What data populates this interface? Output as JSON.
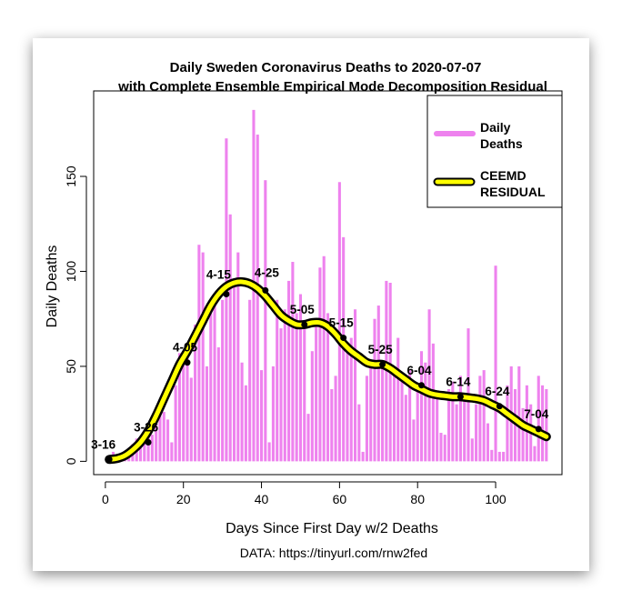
{
  "chart_data": {
    "type": "bar",
    "title": "Daily Sweden Coronavirus Deaths to 2020-07-07",
    "subtitle": "with Complete Ensemble Empirical Mode Decomposition Residual",
    "xlabel": "Days Since First Day w/2 Deaths",
    "ylabel": "Daily Deaths",
    "source": "DATA: https://tinyurl.com/rnw2fed",
    "xlim": [
      -3,
      117
    ],
    "ylim": [
      -7,
      195
    ],
    "xticks": [
      0,
      20,
      40,
      60,
      80,
      100
    ],
    "yticks": [
      0,
      50,
      100,
      150
    ],
    "grid": false,
    "legend": {
      "position": "top-right",
      "entries": [
        {
          "label_lines": [
            "Daily",
            "Deaths"
          ],
          "color": "#ee82ee",
          "style": "bar"
        },
        {
          "label_lines": [
            "CEEMD",
            "RESIDUAL"
          ],
          "color": "#ffff00",
          "edge": "#000000",
          "style": "line"
        }
      ]
    },
    "colors": {
      "bars": "#ee82ee",
      "residual_fill": "#ffff00",
      "residual_edge": "#000000"
    },
    "series": [
      {
        "name": "Daily Deaths",
        "type": "bar",
        "x": [
          1,
          2,
          3,
          4,
          5,
          6,
          7,
          8,
          9,
          10,
          11,
          12,
          13,
          14,
          15,
          16,
          17,
          18,
          19,
          20,
          21,
          22,
          23,
          24,
          25,
          26,
          27,
          28,
          29,
          30,
          31,
          32,
          33,
          34,
          35,
          36,
          37,
          38,
          39,
          40,
          41,
          42,
          43,
          44,
          45,
          46,
          47,
          48,
          49,
          50,
          51,
          52,
          53,
          54,
          55,
          56,
          57,
          58,
          59,
          60,
          61,
          62,
          63,
          64,
          65,
          66,
          67,
          68,
          69,
          70,
          71,
          72,
          73,
          74,
          75,
          76,
          77,
          78,
          79,
          80,
          81,
          82,
          83,
          84,
          85,
          86,
          87,
          88,
          89,
          90,
          91,
          92,
          93,
          94,
          95,
          96,
          97,
          98,
          99,
          100,
          101,
          102,
          103,
          104,
          105,
          106,
          107,
          108,
          109,
          110,
          111,
          112,
          113
        ],
        "values": [
          2,
          5,
          1,
          4,
          5,
          7,
          9,
          12,
          10,
          15,
          18,
          14,
          20,
          24,
          26,
          22,
          10,
          40,
          57,
          55,
          60,
          44,
          72,
          114,
          110,
          50,
          78,
          85,
          60,
          85,
          170,
          130,
          96,
          110,
          52,
          40,
          85,
          185,
          172,
          48,
          148,
          10,
          50,
          85,
          70,
          80,
          95,
          105,
          78,
          88,
          72,
          25,
          58,
          75,
          102,
          108,
          78,
          38,
          45,
          147,
          118,
          62,
          65,
          80,
          30,
          5,
          45,
          52,
          75,
          82,
          50,
          95,
          94,
          48,
          65,
          44,
          35,
          48,
          22,
          40,
          58,
          52,
          80,
          62,
          36,
          15,
          14,
          38,
          42,
          30,
          45,
          35,
          70,
          12,
          30,
          45,
          48,
          20,
          6,
          103,
          5,
          5,
          40,
          50,
          38,
          50,
          28,
          40,
          30,
          8,
          45,
          40,
          38
        ]
      },
      {
        "name": "CEEMD Residual",
        "type": "line",
        "x": [
          1,
          3,
          5,
          7,
          9,
          11,
          13,
          15,
          17,
          19,
          21,
          23,
          25,
          27,
          29,
          31,
          33,
          35,
          37,
          39,
          41,
          43,
          45,
          47,
          49,
          51,
          53,
          55,
          57,
          59,
          61,
          63,
          65,
          67,
          69,
          71,
          73,
          75,
          77,
          79,
          81,
          83,
          85,
          87,
          89,
          91,
          93,
          95,
          97,
          99,
          101,
          103,
          105,
          107,
          109,
          111,
          113
        ],
        "values": [
          1,
          1.5,
          3,
          6,
          10,
          16,
          24,
          33,
          42,
          51,
          58,
          66,
          74,
          82,
          88,
          92,
          94,
          94.5,
          93.5,
          91,
          87,
          82,
          77,
          74,
          72,
          72,
          73,
          73,
          71,
          67,
          62,
          58,
          55,
          52,
          51,
          51,
          49,
          46,
          43,
          40,
          38,
          36,
          35,
          34.5,
          34,
          34,
          33.5,
          33,
          32,
          30,
          28,
          25,
          22,
          19,
          17,
          15,
          13
        ]
      }
    ],
    "annotations": [
      {
        "label": "3-16",
        "x": 1,
        "y": 1
      },
      {
        "label": "3-26",
        "x": 11,
        "y": 10
      },
      {
        "label": "4-05",
        "x": 21,
        "y": 52
      },
      {
        "label": "4-15",
        "x": 31,
        "y": 88
      },
      {
        "label": "4-25",
        "x": 41,
        "y": 90
      },
      {
        "label": "5-05",
        "x": 51,
        "y": 72
      },
      {
        "label": "5-15",
        "x": 61,
        "y": 65
      },
      {
        "label": "5-25",
        "x": 71,
        "y": 51
      },
      {
        "label": "6-04",
        "x": 81,
        "y": 40
      },
      {
        "label": "6-14",
        "x": 91,
        "y": 34
      },
      {
        "label": "6-24",
        "x": 101,
        "y": 29
      },
      {
        "label": "7-04",
        "x": 111,
        "y": 17
      }
    ]
  }
}
